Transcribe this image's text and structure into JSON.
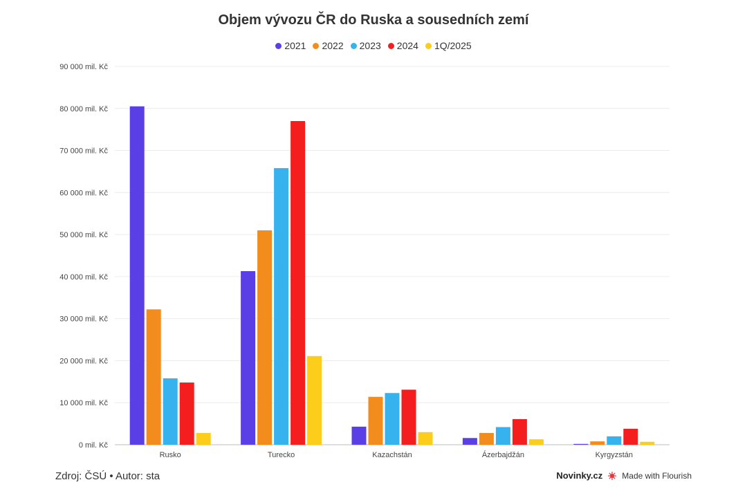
{
  "chart_data": {
    "type": "bar",
    "title": "Objem vývozu ČR do Ruska a sousedních zemí",
    "categories": [
      "Rusko",
      "Turecko",
      "Kazachstán",
      "Ázerbajdžán",
      "Kyrgyzstán"
    ],
    "series": [
      {
        "name": "2021",
        "color": "#5b3fe6",
        "values": [
          80500,
          41300,
          4300,
          1600,
          200
        ]
      },
      {
        "name": "2022",
        "color": "#f28c1c",
        "values": [
          32200,
          51000,
          11400,
          2800,
          800
        ]
      },
      {
        "name": "2023",
        "color": "#36b2ee",
        "values": [
          15800,
          65800,
          12300,
          4200,
          2000
        ]
      },
      {
        "name": "2024",
        "color": "#f41e1e",
        "values": [
          14800,
          77000,
          13100,
          6100,
          3800
        ]
      },
      {
        "name": "1Q/2025",
        "color": "#fccd1b",
        "values": [
          2800,
          21100,
          3000,
          1300,
          700
        ]
      }
    ],
    "y_ticks": [
      "0 mil. Kč",
      "10 000 mil. Kč",
      "20 000 mil. Kč",
      "30 000 mil. Kč",
      "40 000 mil. Kč",
      "50 000 mil. Kč",
      "60 000 mil. Kč",
      "70 000 mil. Kč",
      "80 000 mil. Kč",
      "90 000 mil. Kč"
    ],
    "ylim": [
      0,
      90000
    ],
    "grid": true,
    "legend_position": "top-center"
  },
  "footer": {
    "source": "Zdroj: ČSÚ • Autor: sta",
    "brand": "Novinky.cz",
    "made_with": "Made with Flourish"
  }
}
